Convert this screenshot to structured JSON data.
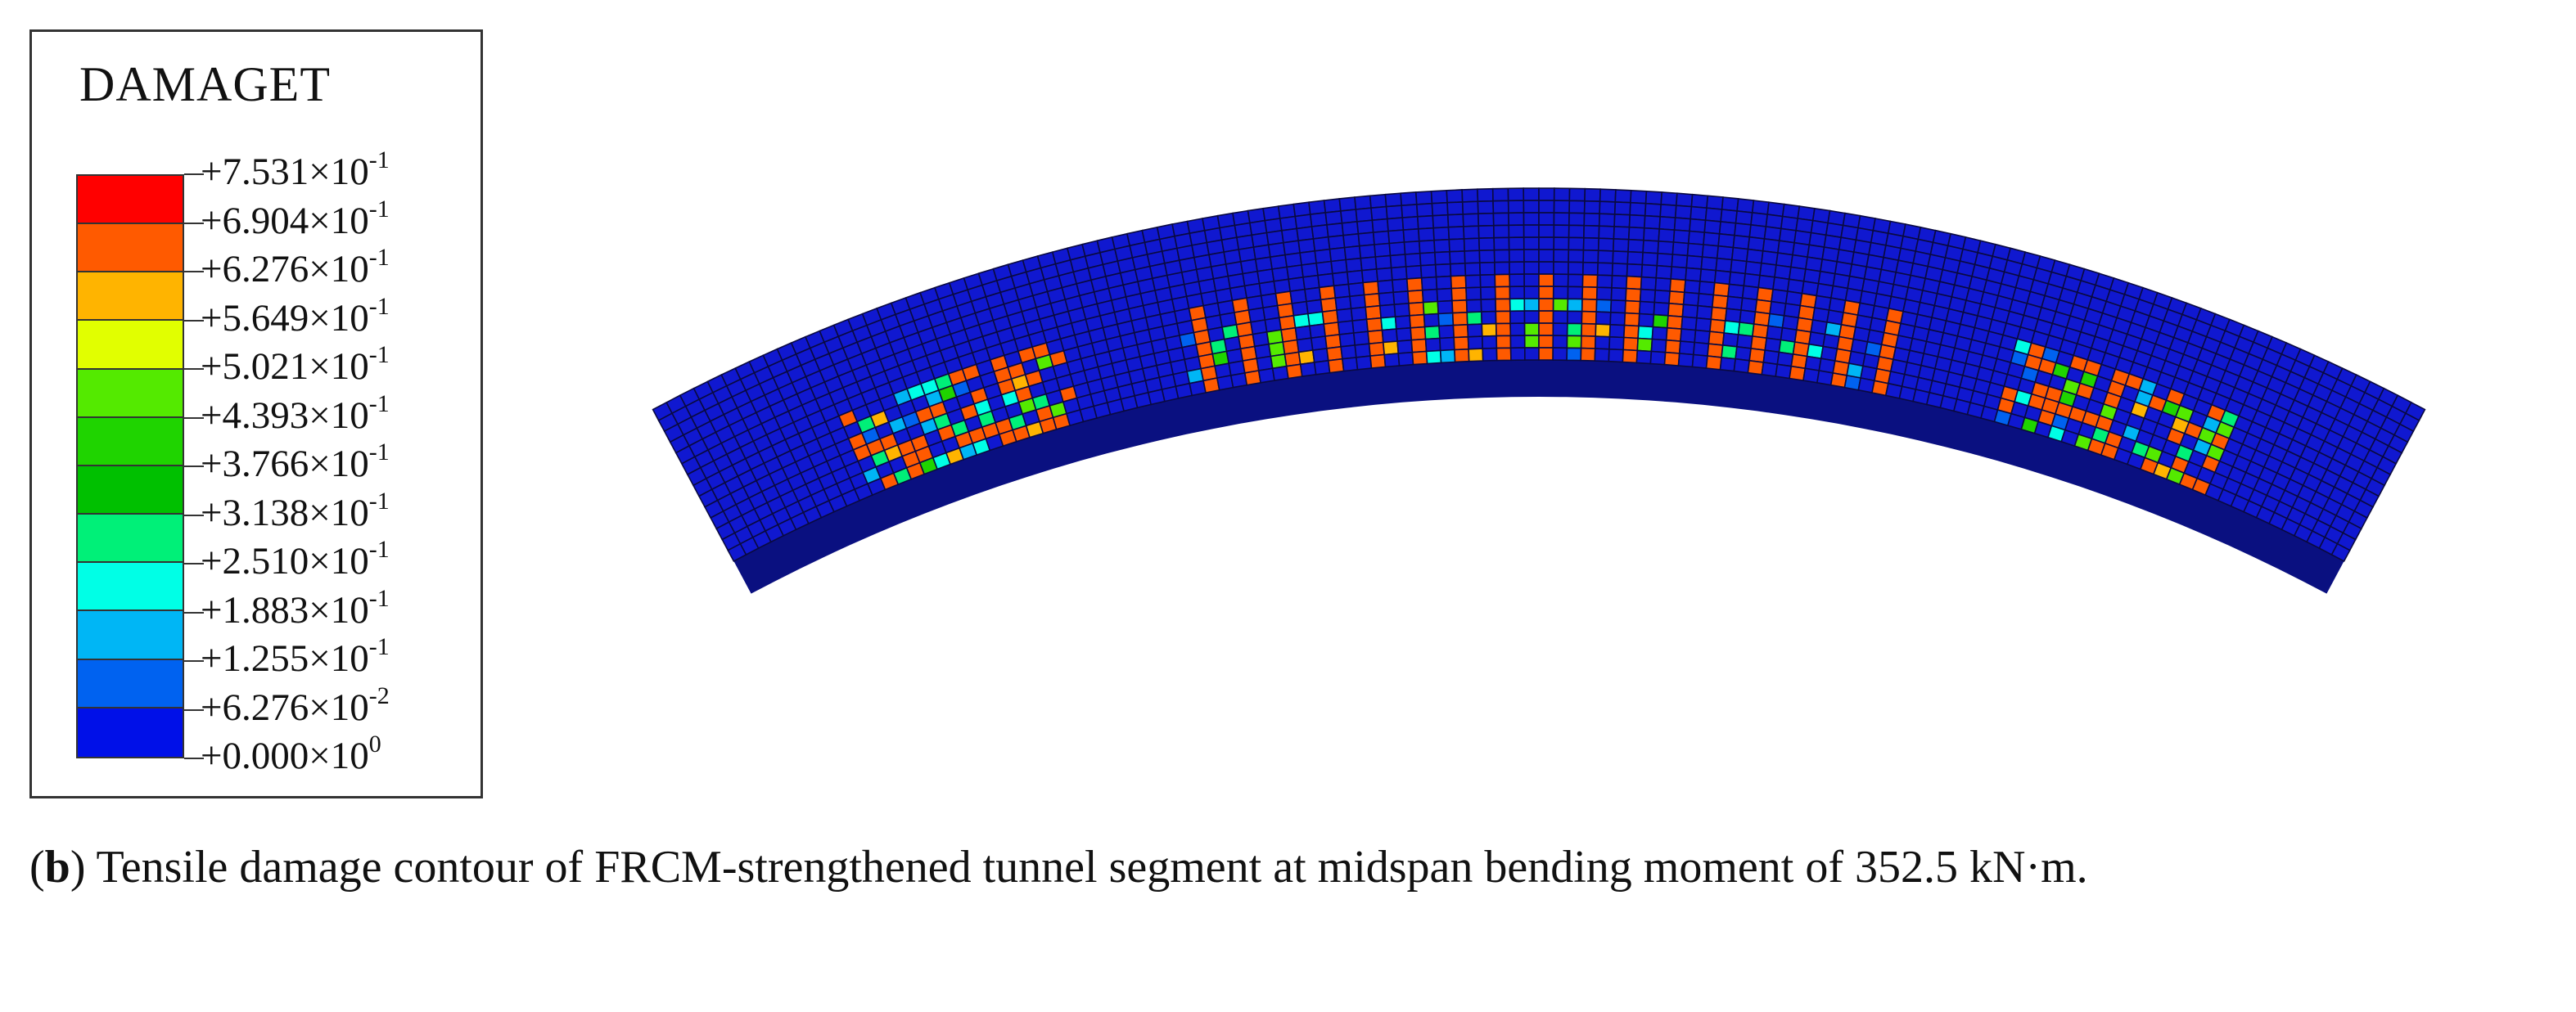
{
  "legend": {
    "title": "DAMAGET",
    "colors": [
      "#ff0000",
      "#ff5a00",
      "#ffb400",
      "#e1ff00",
      "#54ea00",
      "#1fd400",
      "#00c000",
      "#00f078",
      "#00ffe6",
      "#00b6f5",
      "#0062f0",
      "#0010e8"
    ],
    "ticks": [
      {
        "mant": "+7.531",
        "exp": "-1"
      },
      {
        "mant": "+6.904",
        "exp": "-1"
      },
      {
        "mant": "+6.276",
        "exp": "-1"
      },
      {
        "mant": "+5.649",
        "exp": "-1"
      },
      {
        "mant": "+5.021",
        "exp": "-1"
      },
      {
        "mant": "+4.393",
        "exp": "-1"
      },
      {
        "mant": "+3.766",
        "exp": "-1"
      },
      {
        "mant": "+3.138",
        "exp": "-1"
      },
      {
        "mant": "+2.510",
        "exp": "-1"
      },
      {
        "mant": "+1.883",
        "exp": "-1"
      },
      {
        "mant": "+1.255",
        "exp": "-1"
      },
      {
        "mant": "+6.276",
        "exp": "-2"
      },
      {
        "mant": "+0.000",
        "exp": "0"
      }
    ]
  },
  "caption": {
    "label": "b",
    "text": "Tensile damage contour of FRCM-strengthened tunnel segment at midspan bending moment of 352.5 kN·m."
  },
  "colors": {
    "background_blue": "#1018d0",
    "damage_red": "#ff5a00",
    "mesh_line": "#0a0a40"
  }
}
